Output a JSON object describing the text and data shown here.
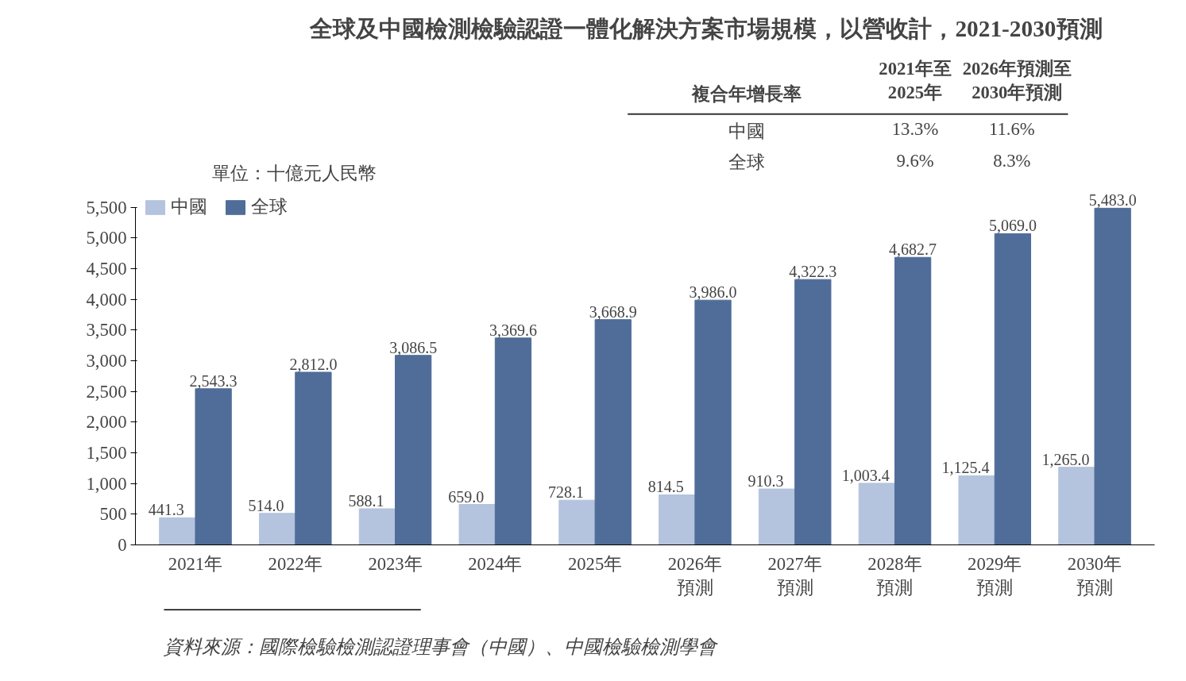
{
  "chart_data": {
    "type": "bar",
    "title": "全球及中國檢測檢驗認證一體化解決方案市場規模，以營收計，2021-2030預測",
    "categories": [
      "2021年",
      "2022年",
      "2023年",
      "2024年",
      "2025年",
      "2026年預測",
      "2027年預測",
      "2028年預測",
      "2029年預測",
      "2030年預測"
    ],
    "series": [
      {
        "name": "中國",
        "color": "#b4c3de",
        "values": [
          441.3,
          514.0,
          588.1,
          659.0,
          728.1,
          814.5,
          910.3,
          1003.4,
          1125.4,
          1265.0
        ]
      },
      {
        "name": "全球",
        "color": "#4f6d98",
        "values": [
          2543.3,
          2812.0,
          3086.5,
          3369.6,
          3668.9,
          3986.0,
          4322.3,
          4682.7,
          5069.0,
          5483.0
        ]
      }
    ],
    "value_labels": [
      [
        "441.3",
        "514.0",
        "588.1",
        "659.0",
        "728.1",
        "814.5",
        "910.3",
        "1,003.4",
        "1,125.4",
        "1,265.0"
      ],
      [
        "2,543.3",
        "2,812.0",
        "3,086.5",
        "3,369.6",
        "3,668.9",
        "3,986.0",
        "4,322.3",
        "4,682.7",
        "5,069.0",
        "5,483.0"
      ]
    ],
    "ylim": [
      0,
      5500
    ],
    "yticks": [
      0,
      500,
      {
        "value": 1000,
        "label": "1,000"
      },
      {
        "value": 1500,
        "label": "1,500"
      },
      {
        "value": 2000,
        "label": "2,000"
      },
      {
        "value": 2500,
        "label": "2,500"
      },
      {
        "value": 3000,
        "label": "3,000"
      },
      {
        "value": 3500,
        "label": "3,500"
      },
      {
        "value": 4000,
        "label": "4,000"
      },
      {
        "value": 4500,
        "label": "4,500"
      },
      {
        "value": 5000,
        "label": "5,000"
      },
      {
        "value": 5500,
        "label": "5,500"
      }
    ],
    "ylabel": "單位：十億元人民幣",
    "annotations": [
      "複合年增長率",
      "2021年至\n2025年",
      "2026年預測至\n2030年預測",
      "中國",
      "13.3%",
      "11.6%",
      "全球",
      "9.6%",
      "8.3%",
      "資料來源：國際檢驗檢測認證理事會（中國）、中國檢驗檢測學會"
    ],
    "legend": "top left",
    "grid": false
  }
}
